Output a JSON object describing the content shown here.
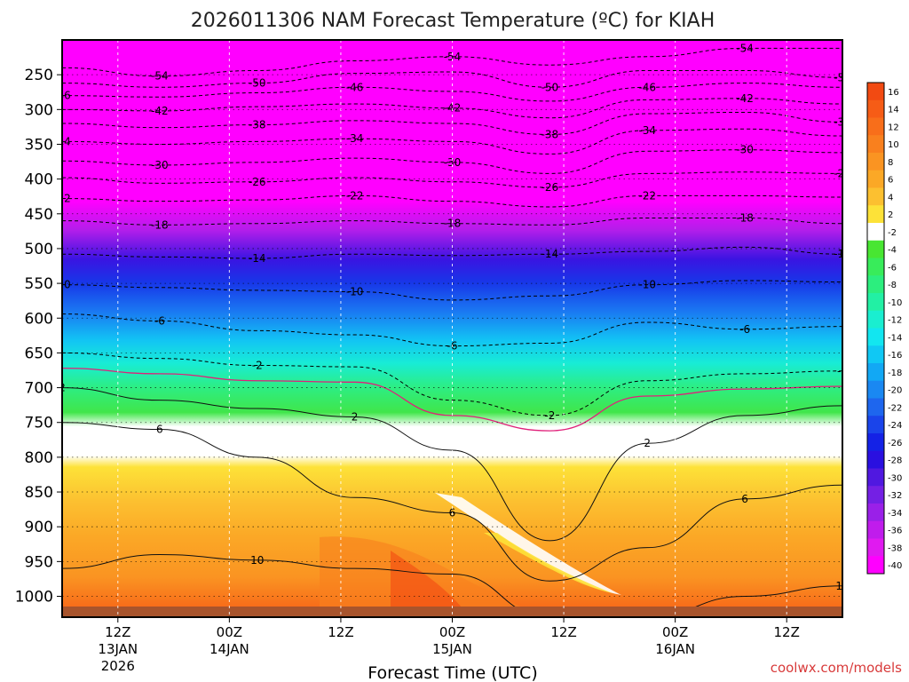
{
  "chart_data": {
    "type": "heatmap",
    "title": "2026011306 NAM Forecast Temperature (ºC) for KIAH",
    "xlabel": "Forecast Time (UTC)",
    "ylabel": "",
    "credit": "coolwx.com/models",
    "pressure_ticks": [
      "250",
      "300",
      "350",
      "400",
      "450",
      "500",
      "550",
      "600",
      "650",
      "700",
      "750",
      "800",
      "850",
      "900",
      "950",
      "1000"
    ],
    "pressure_values": [
      250,
      300,
      350,
      400,
      450,
      500,
      550,
      600,
      650,
      700,
      750,
      800,
      850,
      900,
      950,
      1000
    ],
    "ylim": [
      200,
      1030
    ],
    "x_hours_range": [
      0,
      84
    ],
    "time_ticks": [
      {
        "hour": 6,
        "hr": "12Z",
        "date": "13JAN",
        "year": "2026"
      },
      {
        "hour": 18,
        "hr": "00Z",
        "date": "14JAN",
        "year": ""
      },
      {
        "hour": 30,
        "hr": "12Z",
        "date": "",
        "year": ""
      },
      {
        "hour": 42,
        "hr": "00Z",
        "date": "15JAN",
        "year": ""
      },
      {
        "hour": 54,
        "hr": "12Z",
        "date": "",
        "year": ""
      },
      {
        "hour": 66,
        "hr": "00Z",
        "date": "16JAN",
        "year": ""
      },
      {
        "hour": 78,
        "hr": "12Z",
        "date": "",
        "year": ""
      }
    ],
    "colorbar": {
      "labels": [
        "16",
        "14",
        "12",
        "10",
        "8",
        "6",
        "4",
        "2",
        "-2",
        "-4",
        "-6",
        "-8",
        "-10",
        "-12",
        "-14",
        "-16",
        "-18",
        "-20",
        "-22",
        "-24",
        "-26",
        "-28",
        "-30",
        "-32",
        "-34",
        "-36",
        "-38",
        "-40"
      ],
      "colors": [
        "#f24a12",
        "#f65c16",
        "#f86e1a",
        "#f9801e",
        "#fa9422",
        "#fba826",
        "#fcc030",
        "#fde238",
        "#ffffff",
        "#48e632",
        "#38ec5a",
        "#2cee7e",
        "#22f0a4",
        "#1aeed0",
        "#12e6f0",
        "#10c8f4",
        "#12a8f4",
        "#1a88f2",
        "#1e66ee",
        "#1a44ea",
        "#1422e6",
        "#2a10e0",
        "#5018e0",
        "#7420e4",
        "#9a20e8",
        "#c01cec",
        "#e01af0",
        "#ff00ff"
      ]
    },
    "series": [
      {
        "name": "-54 °C isotherm",
        "p": [
          240,
          252,
          244,
          230,
          224,
          236,
          224,
          212,
          212
        ],
        "label": "-54"
      },
      {
        "name": "-50 °C isotherm",
        "p": [
          262,
          268,
          262,
          248,
          246,
          268,
          244,
          244,
          254
        ],
        "label": "-50"
      },
      {
        "name": "-46 °C isotherm",
        "p": [
          280,
          282,
          276,
          268,
          274,
          288,
          268,
          262,
          268
        ],
        "label": "-46"
      },
      {
        "name": "-42 °C isotherm",
        "p": [
          300,
          302,
          296,
          292,
          298,
          312,
          286,
          284,
          292
        ],
        "label": "-42"
      },
      {
        "name": "-38 °C isotherm",
        "p": [
          320,
          326,
          322,
          316,
          320,
          336,
          306,
          304,
          318
        ],
        "label": "-38"
      },
      {
        "name": "-34 °C isotherm",
        "p": [
          346,
          350,
          346,
          342,
          346,
          364,
          330,
          328,
          338
        ],
        "label": "-34"
      },
      {
        "name": "-30 °C isotherm",
        "p": [
          374,
          380,
          376,
          370,
          376,
          392,
          360,
          358,
          362
        ],
        "label": "-30"
      },
      {
        "name": "-26 °C isotherm",
        "p": [
          398,
          406,
          404,
          398,
          404,
          412,
          392,
          390,
          392
        ],
        "label": "-26"
      },
      {
        "name": "-22 °C isotherm",
        "p": [
          428,
          432,
          430,
          424,
          432,
          440,
          424,
          424,
          426
        ],
        "label": "-22"
      },
      {
        "name": "-18 °C isotherm",
        "p": [
          460,
          466,
          464,
          460,
          464,
          466,
          456,
          456,
          464
        ],
        "label": "-18"
      },
      {
        "name": "-14 °C isotherm",
        "p": [
          508,
          512,
          514,
          508,
          510,
          508,
          504,
          498,
          508
        ],
        "label": "-14"
      },
      {
        "name": "-10 °C isotherm",
        "p": [
          552,
          556,
          560,
          562,
          574,
          568,
          552,
          546,
          548
        ],
        "label": "-10"
      },
      {
        "name": "-6 °C isotherm",
        "p": [
          594,
          604,
          618,
          624,
          640,
          636,
          606,
          616,
          612
        ],
        "label": "-6"
      },
      {
        "name": "-2 °C isotherm",
        "p": [
          650,
          658,
          668,
          670,
          718,
          740,
          690,
          680,
          676
        ],
        "label": "-2"
      },
      {
        "name": "2 °C isotherm",
        "p": [
          700,
          718,
          730,
          742,
          790,
          920,
          780,
          740,
          726
        ],
        "label": "2"
      },
      {
        "name": "6 °C isotherm",
        "p": [
          750,
          760,
          800,
          858,
          880,
          978,
          930,
          860,
          840
        ],
        "label": "6"
      },
      {
        "name": "10 °C isotherm",
        "p": [
          960,
          940,
          948,
          960,
          968,
          1030,
          1030,
          1000,
          985
        ],
        "label": "10"
      }
    ],
    "series_hours": [
      0,
      10.5,
      21,
      31.5,
      42,
      52.5,
      63,
      73.5,
      84
    ],
    "surface_band_color": "#a8542c"
  }
}
